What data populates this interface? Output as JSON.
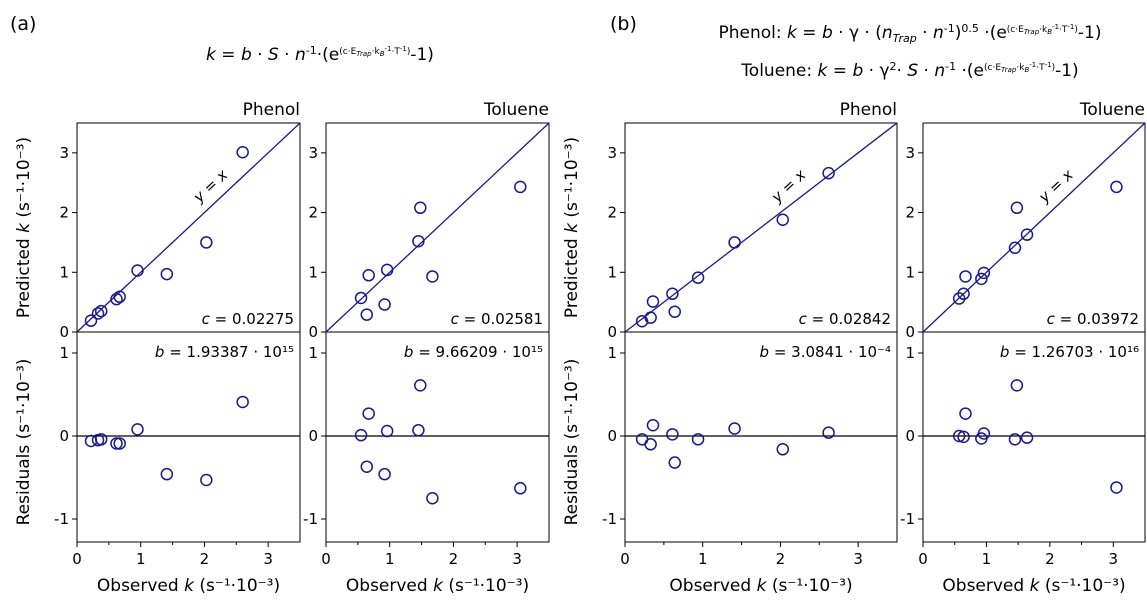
{
  "panels": [
    {
      "label": "(a)",
      "equation_lines": [
        [
          {
            "t": "k",
            "i": true
          },
          {
            "t": " = "
          },
          {
            "t": "b",
            "i": true
          },
          {
            "t": " · "
          },
          {
            "t": "S",
            "i": true
          },
          {
            "t": " · "
          },
          {
            "t": "n",
            "i": true
          },
          {
            "t": "-1",
            "sup": true
          },
          {
            "t": "·(e"
          },
          {
            "t": "(c·E",
            "sup": true,
            "small": true
          },
          {
            "t": "Trap",
            "sup2": true
          },
          {
            "t": "·k",
            "sup": true,
            "small": true
          },
          {
            "t": "B",
            "sup2": true
          },
          {
            "t": "-1",
            "sup3": true
          },
          {
            "t": "·T",
            "sup": true,
            "small": true
          },
          {
            "t": "-1",
            "sup3": true
          },
          {
            "t": ")",
            "sup": true,
            "small": true
          },
          {
            "t": "-1)"
          }
        ]
      ],
      "x_axis_label": "Observed k (s⁻¹·10⁻³)",
      "y_axis_label_top": "Predicted k (s⁻¹·10⁻³)",
      "y_axis_label_bottom": "Residuals (s⁻¹·10⁻³)",
      "subplots": [
        {
          "title": "Phenol",
          "c_label": "c = 0.02275",
          "b_label": "b = 1.93387 · 10¹⁵"
        },
        {
          "title": "Toluene",
          "c_label": "c = 0.02581",
          "b_label": "b = 9.66209 · 10¹⁵"
        }
      ]
    },
    {
      "label": "(b)",
      "equation_lines": [
        [
          {
            "t": "Phenol: "
          },
          {
            "t": "k",
            "i": true
          },
          {
            "t": " = "
          },
          {
            "t": "b",
            "i": true
          },
          {
            "t": " · γ · ("
          },
          {
            "t": "n",
            "i": true
          },
          {
            "t": "Trap",
            "sub": true
          },
          {
            "t": " · "
          },
          {
            "t": "n",
            "i": true
          },
          {
            "t": "-1",
            "sup": true
          },
          {
            "t": ")"
          },
          {
            "t": "0.5",
            "sup": true
          },
          {
            "t": " ·(e"
          },
          {
            "t": "(c·E",
            "sup": true,
            "small": true
          },
          {
            "t": "Trap",
            "sup2": true
          },
          {
            "t": "·k",
            "sup": true,
            "small": true
          },
          {
            "t": "B",
            "sup2": true
          },
          {
            "t": "-1",
            "sup3": true
          },
          {
            "t": "·T",
            "sup": true,
            "small": true
          },
          {
            "t": "-1",
            "sup3": true
          },
          {
            "t": ")",
            "sup": true,
            "small": true
          },
          {
            "t": "-1)"
          }
        ],
        [
          {
            "t": "Toluene: "
          },
          {
            "t": "k",
            "i": true
          },
          {
            "t": " = "
          },
          {
            "t": "b",
            "i": true
          },
          {
            "t": " · γ"
          },
          {
            "t": "2",
            "sup": true
          },
          {
            "t": "· "
          },
          {
            "t": "S",
            "i": true
          },
          {
            "t": " · "
          },
          {
            "t": "n",
            "i": true
          },
          {
            "t": "-1",
            "sup": true
          },
          {
            "t": " ·(e"
          },
          {
            "t": "(c·E",
            "sup": true,
            "small": true
          },
          {
            "t": "Trap",
            "sup2": true
          },
          {
            "t": "·k",
            "sup": true,
            "small": true
          },
          {
            "t": "B",
            "sup2": true
          },
          {
            "t": "-1",
            "sup3": true
          },
          {
            "t": "·T",
            "sup": true,
            "small": true
          },
          {
            "t": "-1",
            "sup3": true
          },
          {
            "t": ")",
            "sup": true,
            "small": true
          },
          {
            "t": "-1)"
          }
        ]
      ],
      "x_axis_label": "Observed k (s⁻¹·10⁻³)",
      "y_axis_label_top": "Predicted k (s⁻¹·10⁻³)",
      "y_axis_label_bottom": "Residuals (s⁻¹·10⁻³)",
      "subplots": [
        {
          "title": "Phenol",
          "c_label": "c = 0.02842",
          "b_label": "b = 3.0841 · 10⁻⁴"
        },
        {
          "title": "Toluene",
          "c_label": "c = 0.03972",
          "b_label": "b = 1.26703 · 10¹⁶"
        }
      ]
    }
  ],
  "chart_data": [
    {
      "type": "scatter",
      "panel": "(a)",
      "title": "Phenol",
      "reference_line": "y = x",
      "xlim": [
        0,
        3.5
      ],
      "ylim_predicted": [
        0,
        3.5
      ],
      "ylim_residuals": [
        -1.3,
        1.3
      ],
      "xticks": [
        0,
        1,
        2,
        3
      ],
      "yticks_predicted": [
        0,
        1,
        2,
        3
      ],
      "yticks_residuals": [
        -1,
        0,
        1
      ],
      "observed": [
        0.22,
        0.33,
        0.38,
        0.62,
        0.67,
        0.95,
        1.41,
        2.03,
        2.6
      ],
      "predicted": [
        0.19,
        0.31,
        0.35,
        0.55,
        0.59,
        1.03,
        0.97,
        1.5,
        3.01
      ],
      "residuals": [
        -0.06,
        -0.05,
        -0.04,
        -0.09,
        -0.09,
        0.08,
        -0.46,
        -0.53,
        0.41
      ]
    },
    {
      "type": "scatter",
      "panel": "(a)",
      "title": "Toluene",
      "reference_line": "",
      "xlim": [
        0,
        3.5
      ],
      "ylim_predicted": [
        0,
        3.5
      ],
      "ylim_residuals": [
        -1.3,
        1.3
      ],
      "xticks": [
        0,
        1,
        2,
        3
      ],
      "yticks_predicted": [
        0,
        1,
        2,
        3
      ],
      "yticks_residuals": [
        -1,
        0,
        1
      ],
      "observed": [
        0.55,
        0.64,
        0.67,
        0.92,
        0.96,
        1.45,
        1.48,
        1.67,
        3.05
      ],
      "predicted": [
        0.57,
        0.29,
        0.95,
        0.46,
        1.04,
        1.52,
        2.08,
        0.93,
        2.43
      ],
      "residuals": [
        0.01,
        -0.37,
        0.27,
        -0.46,
        0.06,
        0.07,
        0.61,
        -0.75,
        -0.63
      ]
    },
    {
      "type": "scatter",
      "panel": "(b)",
      "title": "Phenol",
      "reference_line": "y = x",
      "xlim": [
        0,
        3.5
      ],
      "ylim_predicted": [
        0,
        3.5
      ],
      "ylim_residuals": [
        -1.3,
        1.3
      ],
      "xticks": [
        0,
        1,
        2,
        3
      ],
      "yticks_predicted": [
        0,
        1,
        2,
        3
      ],
      "yticks_residuals": [
        -1,
        0,
        1
      ],
      "observed": [
        0.22,
        0.33,
        0.36,
        0.61,
        0.64,
        0.94,
        1.41,
        2.03,
        2.62
      ],
      "predicted": [
        0.18,
        0.24,
        0.51,
        0.64,
        0.34,
        0.91,
        1.5,
        1.88,
        2.66
      ],
      "residuals": [
        -0.04,
        -0.1,
        0.13,
        0.02,
        -0.32,
        -0.04,
        0.09,
        -0.16,
        0.04
      ]
    },
    {
      "type": "scatter",
      "panel": "(b)",
      "title": "Toluene",
      "reference_line": "y = x",
      "xlim": [
        0,
        3.5
      ],
      "ylim_predicted": [
        0,
        3.5
      ],
      "ylim_residuals": [
        -1.3,
        1.3
      ],
      "xticks": [
        0,
        1,
        2,
        3
      ],
      "yticks_predicted": [
        0,
        1,
        2,
        3
      ],
      "yticks_residuals": [
        -1,
        0,
        1
      ],
      "observed": [
        0.57,
        0.64,
        0.67,
        0.92,
        0.96,
        1.45,
        1.48,
        1.64,
        3.05
      ],
      "predicted": [
        0.56,
        0.64,
        0.93,
        0.89,
        0.99,
        1.41,
        2.08,
        1.63,
        2.43
      ],
      "residuals": [
        0.0,
        -0.01,
        0.27,
        -0.03,
        0.03,
        -0.04,
        0.61,
        -0.02,
        -0.62
      ]
    }
  ]
}
